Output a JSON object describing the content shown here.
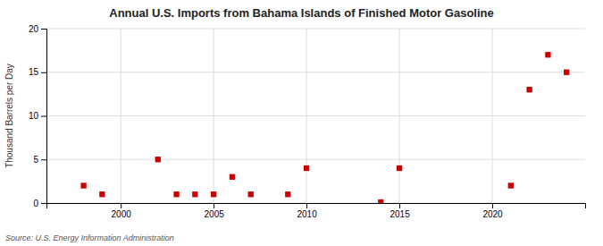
{
  "chart_data": {
    "type": "scatter",
    "title": "Annual U.S. Imports from Bahama Islands of Finished Motor Gasoline",
    "ylabel": "Thousand Barrels per Day",
    "annotation": "Source: U.S. Energy Information Administration",
    "x": [
      1998,
      1999,
      2002,
      2003,
      2004,
      2005,
      2006,
      2007,
      2009,
      2010,
      2014,
      2015,
      2021,
      2022,
      2023,
      2024
    ],
    "values": [
      2,
      1,
      5,
      1,
      1,
      1,
      3,
      1,
      1,
      4,
      0.1,
      4,
      2,
      13,
      17,
      15
    ],
    "color": "#cc0000",
    "marker": "square",
    "xlim": [
      1996,
      2025
    ],
    "xticks": [
      2000,
      2005,
      2010,
      2015,
      2020
    ],
    "ylim": [
      0,
      20
    ],
    "yticks": [
      0,
      5,
      10,
      15,
      20
    ],
    "grid": true
  }
}
